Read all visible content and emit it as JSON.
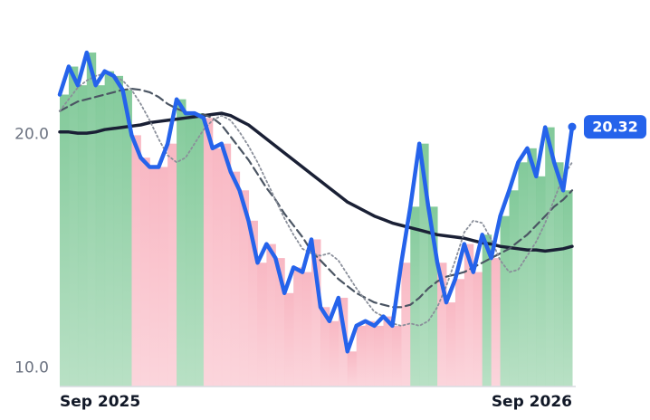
{
  "chart_data": {
    "type": "line",
    "categories": [
      "Sep 2025",
      null,
      null,
      null,
      null,
      null,
      null,
      null,
      null,
      null,
      null,
      null,
      null,
      null,
      null,
      null,
      null,
      null,
      null,
      null,
      null,
      null,
      null,
      null,
      null,
      null,
      null,
      null,
      null,
      null,
      null,
      null,
      null,
      null,
      null,
      null,
      null,
      null,
      null,
      null,
      null,
      null,
      null,
      null,
      null,
      null,
      null,
      null,
      null,
      null,
      null,
      null,
      null,
      null,
      null,
      null,
      null,
      "Sep 2026"
    ],
    "series": [
      {
        "color": "#2563eb",
        "values": [
          21.7,
          22.9,
          22.1,
          23.5,
          22.1,
          22.7,
          22.5,
          21.9,
          19.96,
          19.0,
          18.6,
          18.6,
          19.6,
          21.5,
          20.9,
          20.9,
          20.7,
          19.4,
          19.6,
          18.4,
          17.6,
          16.3,
          14.5,
          15.3,
          14.7,
          13.2,
          14.3,
          14.1,
          15.5,
          12.6,
          12.0,
          13.0,
          10.7,
          11.8,
          12.0,
          11.8,
          12.2,
          11.8,
          14.5,
          16.9,
          19.6,
          16.9,
          14.5,
          12.8,
          13.8,
          15.3,
          14.1,
          15.7,
          14.7,
          16.5,
          17.6,
          18.8,
          19.4,
          18.2,
          20.3,
          18.8,
          17.6,
          20.32
        ]
      },
      {
        "color": "#8a8f9a",
        "values": [
          21.0,
          21.5,
          22.0,
          22.3,
          22.5,
          22.6,
          22.5,
          22.3,
          21.9,
          21.3,
          20.6,
          19.8,
          19.1,
          18.8,
          19.0,
          19.6,
          20.2,
          20.6,
          20.8,
          20.6,
          20.1,
          19.5,
          18.8,
          18.0,
          17.2,
          16.4,
          15.7,
          15.1,
          14.9,
          14.8,
          14.9,
          14.6,
          14.0,
          13.4,
          12.9,
          12.4,
          12.2,
          11.9,
          11.8,
          11.9,
          11.8,
          12.0,
          12.6,
          13.5,
          14.6,
          15.8,
          16.3,
          16.2,
          15.5,
          14.6,
          14.1,
          14.2,
          14.8,
          15.4,
          16.2,
          17.2,
          18.2,
          18.8
        ]
      },
      {
        "color": "#4b5563",
        "values": [
          21.0,
          21.2,
          21.4,
          21.5,
          21.6,
          21.7,
          21.8,
          21.9,
          21.95,
          21.9,
          21.8,
          21.6,
          21.3,
          21.1,
          20.95,
          20.9,
          20.85,
          20.7,
          20.4,
          19.9,
          19.4,
          18.9,
          18.3,
          17.7,
          17.2,
          16.6,
          16.1,
          15.6,
          15.0,
          14.6,
          14.2,
          13.8,
          13.5,
          13.2,
          13.0,
          12.8,
          12.7,
          12.6,
          12.6,
          12.7,
          13.0,
          13.4,
          13.7,
          13.9,
          14.0,
          14.1,
          14.3,
          14.5,
          14.7,
          14.9,
          15.1,
          15.4,
          15.7,
          16.1,
          16.5,
          16.9,
          17.2,
          17.6
        ]
      },
      {
        "color": "#1a2035",
        "values": [
          20.1,
          20.1,
          20.05,
          20.05,
          20.1,
          20.2,
          20.25,
          20.3,
          20.35,
          20.4,
          20.5,
          20.55,
          20.6,
          20.65,
          20.7,
          20.75,
          20.8,
          20.85,
          20.9,
          20.8,
          20.6,
          20.4,
          20.1,
          19.8,
          19.5,
          19.2,
          18.9,
          18.6,
          18.3,
          18.0,
          17.7,
          17.4,
          17.1,
          16.9,
          16.7,
          16.5,
          16.35,
          16.2,
          16.1,
          16.0,
          15.9,
          15.8,
          15.7,
          15.65,
          15.6,
          15.55,
          15.45,
          15.35,
          15.3,
          15.2,
          15.15,
          15.1,
          15.05,
          15.05,
          15.0,
          15.05,
          15.1,
          15.2
        ]
      }
    ],
    "ylim": [
      9.2,
      24.2
    ],
    "yticks": [
      {
        "value": 10,
        "label": "10.0"
      },
      {
        "value": 20,
        "label": "20.0"
      }
    ],
    "grid": false
  }
}
